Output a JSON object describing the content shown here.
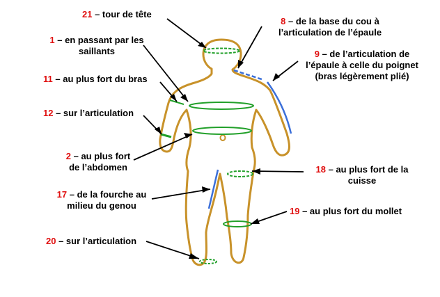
{
  "colors": {
    "body_outline": "#c8922a",
    "circumference": "#22a02a",
    "length": "#3b6fd9",
    "number": "#e01010",
    "text": "#000000"
  },
  "labels": [
    {
      "num": "21",
      "text": "– tour de tête"
    },
    {
      "num": "1",
      "text": "– en passant par les",
      "text2": "saillants"
    },
    {
      "num": "11",
      "text": "– au plus fort du bras"
    },
    {
      "num": "12",
      "text": "– sur l’articulation"
    },
    {
      "num": "2",
      "text": "– au plus fort",
      "text2": "de l’abdomen"
    },
    {
      "num": "17",
      "text": "– de la fourche au",
      "text2": "milieu du genou"
    },
    {
      "num": "20",
      "text": "– sur l’articulation"
    },
    {
      "num": "8",
      "text": "– de la base du cou à",
      "text2": "l’articulation de l’épaule"
    },
    {
      "num": "9",
      "text": "– de l’articulation de",
      "text2": "l’épaule à celle du poignet",
      "text3": "(bras légèrement plié)"
    },
    {
      "num": "18",
      "text": "– au plus fort de la",
      "text2": "cuisse"
    },
    {
      "num": "19",
      "text": "– au plus fort du mollet"
    }
  ]
}
